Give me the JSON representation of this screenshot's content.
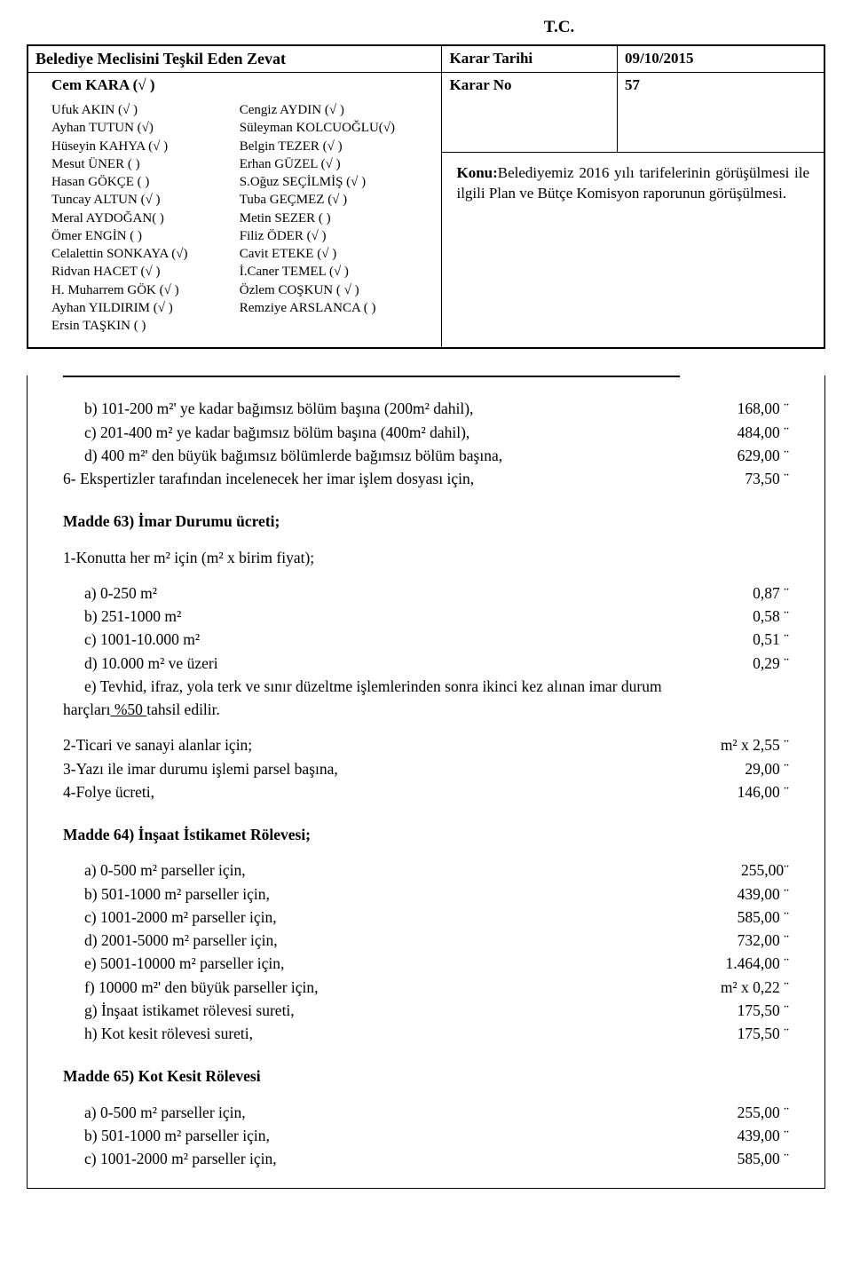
{
  "top_center": "T.C.",
  "header": {
    "zevat_title": "Belediye Meclisini Teşkil Eden Zevat",
    "cem_kara": "Cem KARA (√ )",
    "karar_tarihi_label": "Karar Tarihi",
    "karar_tarihi_value": "09/10/2015",
    "karar_no_label": "Karar No",
    "karar_no_value": "57"
  },
  "members": [
    [
      "Ufuk AKIN  (√ )",
      "Cengiz AYDIN (√ )"
    ],
    [
      "Ayhan TUTUN (√)",
      "Süleyman KOLCUOĞLU(√)"
    ],
    [
      "Hüseyin KAHYA  (√ )",
      "Belgin TEZER  (√ )"
    ],
    [
      "Mesut ÜNER ( )",
      "Erhan GÜZEL  (√ )"
    ],
    [
      "Hasan GÖKÇE (  )",
      "S.Oğuz SEÇİLMİŞ (√ )"
    ],
    [
      "Tuncay ALTUN  (√ )",
      "Tuba GEÇMEZ  (√ )"
    ],
    [
      "Meral AYDOĞAN(   )",
      "Metin SEZER  (  )"
    ],
    [
      "Ömer ENGİN  ( )",
      "Filiz ÖDER   (√ )"
    ],
    [
      "Celalettin SONKAYA (√)",
      "Cavit ETEKE  (√ )"
    ],
    [
      "Ridvan HACET (√ )",
      "İ.Caner TEMEL (√ )"
    ],
    [
      "H. Muharrem GÖK (√ )",
      "Özlem COŞKUN ( √ )"
    ],
    [
      "Ayhan YILDIRIM  (√ )",
      "Remziye ARSLANCA (  )"
    ],
    [
      "Ersin TAŞKIN  (    )",
      ""
    ]
  ],
  "konu": {
    "label": "Konu:",
    "text": "Belediyemiz 2016 yılı tarifelerinin görüşülmesi ile ilgili Plan ve Bütçe Komisyon raporunun görüşülmesi."
  },
  "sec_b_rows": [
    {
      "key": "b)",
      "label": "101-200 m²' ye kadar bağımsız bölüm başına (200m² dahil),",
      "amount": "168,00 ¨"
    },
    {
      "key": "c)",
      "label": "201-400 m² ye kadar bağımsız bölüm başına (400m² dahil),",
      "amount": "484,00 ¨"
    },
    {
      "key": "d)",
      "label": "400 m²' den büyük bağımsız bölümlerde bağımsız bölüm başına,",
      "amount": "629,00 ¨"
    }
  ],
  "sec_b_tail": {
    "label": "6- Ekspertizler tarafından incelenecek her imar işlem dosyası için,",
    "amount": "73,50 ¨"
  },
  "madde63": {
    "title": "Madde 63) İmar Durumu ücreti;",
    "intro": "1-Konutta her m² için (m² x birim fiyat);",
    "rows": [
      {
        "label": "a) 0-250 m²",
        "amount": "0,87 ¨"
      },
      {
        "label": "b) 251-1000 m²",
        "amount": "0,58 ¨"
      },
      {
        "label": "c) 1001-10.000 m²",
        "amount": "0,51 ¨"
      },
      {
        "label": "d) 10.000 m² ve üzeri",
        "amount": "0,29 ¨"
      }
    ],
    "e_prefix": "e) Tevhid, ifraz, yola terk ve sınır düzeltme işlemlerinden sonra ikinci kez alınan imar durum",
    "e_line2_prefix": "harçları",
    "e_underlined": " %50 ",
    "e_line2_suffix": "tahsil edilir.",
    "extra": [
      {
        "label": "2-Ticari ve sanayi alanlar için;",
        "amount": "m² x 2,55 ¨"
      },
      {
        "label": "3-Yazı ile imar durumu işlemi parsel başına,",
        "amount": "29,00 ¨"
      },
      {
        "label": "4-Folye ücreti,",
        "amount": "146,00 ¨"
      }
    ]
  },
  "madde64": {
    "title": "Madde 64) İnşaat İstikamet Rölevesi;",
    "rows": [
      {
        "label": "a) 0-500 m² parseller için,",
        "amount": "255,00¨"
      },
      {
        "label": "b) 501-1000 m² parseller için,",
        "amount": "439,00 ¨"
      },
      {
        "label": "c) 1001-2000 m² parseller için,",
        "amount": "585,00 ¨"
      },
      {
        "label": "d) 2001-5000 m² parseller için,",
        "amount": "732,00 ¨"
      },
      {
        "label": "e) 5001-10000 m² parseller için,",
        "amount": "1.464,00 ¨"
      },
      {
        "label": "f) 10000 m²' den büyük parseller için,",
        "amount": "m² x 0,22 ¨"
      },
      {
        "label": "g) İnşaat istikamet rölevesi sureti,",
        "amount": "175,50 ¨"
      },
      {
        "label": "h) Kot kesit rölevesi sureti,",
        "amount": "175,50 ¨"
      }
    ]
  },
  "madde65": {
    "title": "Madde 65) Kot Kesit Rölevesi",
    "rows": [
      {
        "label": "a) 0-500 m² parseller için,",
        "amount": "255,00 ¨"
      },
      {
        "label": "b) 501-1000 m² parseller için,",
        "amount": "439,00 ¨"
      },
      {
        "label": "c) 1001-2000 m² parseller için,",
        "amount": "585,00 ¨"
      }
    ]
  }
}
